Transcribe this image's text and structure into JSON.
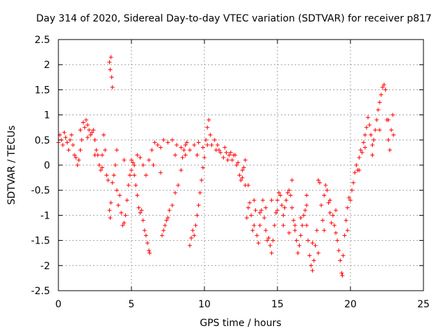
{
  "chart_data": {
    "type": "scatter",
    "title": "Day 314 of 2020, Sidereal Day-to-day VTEC variation (SDTVAR) for receiver p817",
    "xlabel": "GPS time / hours",
    "ylabel": "SDTVAR / TECUs",
    "xlim": [
      0,
      25
    ],
    "ylim": [
      -2.5,
      2.5
    ],
    "x_ticks": [
      0,
      5,
      10,
      15,
      20,
      25
    ],
    "x_tick_labels": [
      "0",
      "5",
      "10",
      "15",
      "20",
      "25"
    ],
    "y_ticks": [
      -2.5,
      -2,
      -1.5,
      -1,
      -0.5,
      0,
      0.5,
      1,
      1.5,
      2,
      2.5
    ],
    "y_tick_labels": [
      "-2.5",
      "-2",
      "-1.5",
      "-1",
      "-0.5",
      "0",
      "0.5",
      "1",
      "1.5",
      "2",
      "2.5"
    ],
    "grid": true,
    "marker": "+",
    "color": "#ff0000",
    "series": [
      {
        "name": "SDTVAR p817",
        "points": [
          [
            0.0,
            0.45
          ],
          [
            0.1,
            0.6
          ],
          [
            0.2,
            0.5
          ],
          [
            0.3,
            0.4
          ],
          [
            0.4,
            0.65
          ],
          [
            0.5,
            0.55
          ],
          [
            0.6,
            0.45
          ],
          [
            0.7,
            0.3
          ],
          [
            0.8,
            0.5
          ],
          [
            0.9,
            0.6
          ],
          [
            1.0,
            0.4
          ],
          [
            1.1,
            0.2
          ],
          [
            1.2,
            0.15
          ],
          [
            1.3,
            0.0
          ],
          [
            1.4,
            0.1
          ],
          [
            1.5,
            0.3
          ],
          [
            1.6,
            0.5
          ],
          [
            1.7,
            0.85
          ],
          [
            1.8,
            0.75
          ],
          [
            1.9,
            0.9
          ],
          [
            2.0,
            0.8
          ],
          [
            2.1,
            0.7
          ],
          [
            2.2,
            0.6
          ],
          [
            2.3,
            0.65
          ],
          [
            2.4,
            0.7
          ],
          [
            2.5,
            0.5
          ],
          [
            2.6,
            0.3
          ],
          [
            2.7,
            0.2
          ],
          [
            2.8,
            0.0
          ],
          [
            2.9,
            -0.1
          ],
          [
            3.0,
            0.2
          ],
          [
            3.1,
            0.6
          ],
          [
            3.2,
            0.3
          ],
          [
            3.3,
            -0.2
          ],
          [
            3.4,
            -0.3
          ],
          [
            3.5,
            2.05
          ],
          [
            3.55,
            1.9
          ],
          [
            3.6,
            2.15
          ],
          [
            3.65,
            1.75
          ],
          [
            3.7,
            1.55
          ],
          [
            3.5,
            -0.9
          ],
          [
            3.55,
            -1.05
          ],
          [
            3.6,
            -0.75
          ],
          [
            3.7,
            -0.35
          ],
          [
            3.8,
            -0.2
          ],
          [
            3.9,
            0.0
          ],
          [
            4.0,
            -0.5
          ],
          [
            4.1,
            -0.8
          ],
          [
            4.2,
            -0.6
          ],
          [
            4.3,
            -0.95
          ],
          [
            4.4,
            -1.2
          ],
          [
            4.5,
            -1.15
          ],
          [
            4.6,
            -1.0
          ],
          [
            4.7,
            -0.7
          ],
          [
            4.8,
            -0.4
          ],
          [
            4.9,
            -0.2
          ],
          [
            5.0,
            -0.1
          ],
          [
            5.1,
            0.05
          ],
          [
            5.2,
            -0.2
          ],
          [
            5.3,
            -0.4
          ],
          [
            5.4,
            -0.6
          ],
          [
            5.5,
            -0.85
          ],
          [
            5.6,
            -0.95
          ],
          [
            5.7,
            -0.9
          ],
          [
            5.8,
            -1.1
          ],
          [
            5.9,
            -1.3
          ],
          [
            6.0,
            -1.4
          ],
          [
            6.1,
            -1.55
          ],
          [
            6.2,
            -1.7
          ],
          [
            6.25,
            -1.75
          ],
          [
            5.0,
            0.1
          ],
          [
            5.2,
            0.0
          ],
          [
            5.4,
            0.2
          ],
          [
            5.6,
            0.15
          ],
          [
            5.8,
            0.0
          ],
          [
            6.0,
            -0.2
          ],
          [
            6.2,
            0.1
          ],
          [
            6.4,
            0.3
          ],
          [
            6.6,
            0.45
          ],
          [
            6.8,
            0.4
          ],
          [
            7.0,
            0.35
          ],
          [
            7.1,
            -1.4
          ],
          [
            7.2,
            -1.3
          ],
          [
            7.3,
            -1.2
          ],
          [
            7.4,
            -1.1
          ],
          [
            7.5,
            -1.05
          ],
          [
            7.6,
            -0.9
          ],
          [
            7.8,
            -0.8
          ],
          [
            8.0,
            -0.55
          ],
          [
            8.2,
            -0.4
          ],
          [
            8.4,
            -0.1
          ],
          [
            8.5,
            0.15
          ],
          [
            8.6,
            0.3
          ],
          [
            8.7,
            0.4
          ],
          [
            8.8,
            0.45
          ],
          [
            9.0,
            -1.6
          ],
          [
            9.1,
            -1.45
          ],
          [
            9.2,
            -1.3
          ],
          [
            9.3,
            -1.4
          ],
          [
            9.4,
            -1.2
          ],
          [
            9.5,
            -1.0
          ],
          [
            9.6,
            -0.8
          ],
          [
            9.7,
            -0.55
          ],
          [
            9.8,
            -0.3
          ],
          [
            9.9,
            -0.05
          ],
          [
            10.0,
            0.15
          ],
          [
            10.1,
            0.5
          ],
          [
            10.2,
            0.75
          ],
          [
            10.3,
            0.9
          ],
          [
            10.4,
            0.6
          ],
          [
            7.2,
            0.5
          ],
          [
            7.5,
            0.45
          ],
          [
            7.8,
            0.5
          ],
          [
            8.1,
            0.4
          ],
          [
            8.4,
            0.35
          ],
          [
            8.7,
            0.2
          ],
          [
            9.0,
            0.3
          ],
          [
            9.3,
            0.4
          ],
          [
            9.6,
            0.45
          ],
          [
            9.9,
            0.35
          ],
          [
            10.5,
            0.4
          ],
          [
            10.7,
            0.5
          ],
          [
            10.9,
            0.4
          ],
          [
            11.1,
            0.25
          ],
          [
            11.3,
            0.15
          ],
          [
            11.5,
            0.25
          ],
          [
            11.7,
            0.2
          ],
          [
            11.9,
            0.1
          ],
          [
            12.1,
            0.2
          ],
          [
            12.3,
            0.05
          ],
          [
            12.4,
            -0.2
          ],
          [
            12.5,
            -0.3
          ],
          [
            12.6,
            -0.1
          ],
          [
            12.7,
            -0.05
          ],
          [
            12.8,
            -0.4
          ],
          [
            12.9,
            -1.05
          ],
          [
            13.0,
            -0.85
          ],
          [
            13.1,
            -0.75
          ],
          [
            13.2,
            -1.0
          ],
          [
            13.3,
            -1.3
          ],
          [
            13.4,
            -1.2
          ],
          [
            13.5,
            -0.9
          ],
          [
            13.6,
            -1.4
          ],
          [
            13.7,
            -1.55
          ],
          [
            13.8,
            -1.2
          ],
          [
            13.9,
            -0.9
          ],
          [
            14.0,
            -0.7
          ],
          [
            14.1,
            -1.05
          ],
          [
            14.2,
            -1.3
          ],
          [
            14.3,
            -1.5
          ],
          [
            14.4,
            -1.45
          ],
          [
            14.5,
            -1.6
          ],
          [
            14.6,
            -1.75
          ],
          [
            14.7,
            -1.5
          ],
          [
            14.8,
            -1.2
          ],
          [
            14.9,
            -0.95
          ],
          [
            15.0,
            -0.7
          ],
          [
            15.1,
            -0.55
          ],
          [
            15.2,
            -0.6
          ],
          [
            15.3,
            -0.8
          ],
          [
            15.4,
            -1.0
          ],
          [
            15.5,
            -0.85
          ],
          [
            15.6,
            -0.7
          ],
          [
            15.7,
            -0.55
          ],
          [
            15.8,
            -0.5
          ],
          [
            15.9,
            -0.6
          ],
          [
            16.0,
            -0.85
          ],
          [
            16.1,
            -1.1
          ],
          [
            16.2,
            -1.3
          ],
          [
            16.3,
            -1.5
          ],
          [
            16.4,
            -1.75
          ],
          [
            16.5,
            -1.6
          ],
          [
            16.6,
            -1.4
          ],
          [
            16.7,
            -1.2
          ],
          [
            16.8,
            -1.0
          ],
          [
            16.9,
            -0.9
          ],
          [
            17.0,
            -1.2
          ],
          [
            17.1,
            -1.5
          ],
          [
            17.2,
            -1.8
          ],
          [
            17.3,
            -2.0
          ],
          [
            17.4,
            -2.1
          ],
          [
            17.5,
            -1.9
          ],
          [
            17.6,
            -1.6
          ],
          [
            17.7,
            -1.3
          ],
          [
            17.8,
            -0.3
          ],
          [
            17.9,
            -0.35
          ],
          [
            18.0,
            -0.8
          ],
          [
            18.1,
            -1.1
          ],
          [
            18.2,
            -0.6
          ],
          [
            18.3,
            -0.4
          ],
          [
            18.4,
            -0.5
          ],
          [
            18.5,
            -0.75
          ],
          [
            18.6,
            -0.95
          ],
          [
            18.7,
            -1.15
          ],
          [
            18.8,
            -1.0
          ],
          [
            18.9,
            -1.2
          ],
          [
            19.0,
            -1.35
          ],
          [
            19.1,
            -1.5
          ],
          [
            19.2,
            -1.7
          ],
          [
            19.3,
            -1.9
          ],
          [
            19.4,
            -2.15
          ],
          [
            19.45,
            -2.2
          ],
          [
            19.5,
            -1.8
          ],
          [
            19.6,
            -1.4
          ],
          [
            19.7,
            -1.1
          ],
          [
            19.8,
            -0.85
          ],
          [
            19.9,
            -0.65
          ],
          [
            20.0,
            -0.7
          ],
          [
            20.1,
            -0.5
          ],
          [
            20.2,
            -0.35
          ],
          [
            20.3,
            -0.15
          ],
          [
            20.4,
            0.0
          ],
          [
            20.5,
            -0.1
          ],
          [
            20.6,
            0.15
          ],
          [
            20.7,
            0.3
          ],
          [
            20.8,
            0.25
          ],
          [
            20.9,
            0.45
          ],
          [
            21.0,
            0.6
          ],
          [
            21.1,
            0.75
          ],
          [
            21.2,
            0.95
          ],
          [
            21.3,
            0.8
          ],
          [
            21.4,
            0.6
          ],
          [
            21.5,
            0.4
          ],
          [
            21.6,
            0.5
          ],
          [
            21.7,
            0.7
          ],
          [
            21.8,
            0.9
          ],
          [
            21.9,
            1.1
          ],
          [
            22.0,
            1.25
          ],
          [
            22.1,
            1.4
          ],
          [
            22.2,
            1.55
          ],
          [
            22.3,
            1.6
          ],
          [
            22.4,
            1.5
          ],
          [
            22.5,
            0.9
          ],
          [
            22.6,
            0.5
          ],
          [
            22.7,
            0.3
          ],
          [
            22.8,
            0.7
          ],
          [
            22.9,
            1.0
          ],
          [
            22.95,
            0.6
          ],
          [
            11.0,
            0.3
          ],
          [
            11.4,
            0.35
          ],
          [
            11.8,
            0.25
          ],
          [
            12.2,
            0.0
          ],
          [
            12.6,
            -0.25
          ],
          [
            13.0,
            -0.4
          ],
          [
            13.4,
            -0.7
          ],
          [
            13.8,
            -0.95
          ],
          [
            14.2,
            -0.85
          ],
          [
            14.6,
            -0.7
          ],
          [
            15.0,
            -0.9
          ],
          [
            15.4,
            -1.2
          ],
          [
            15.8,
            -1.35
          ],
          [
            16.2,
            -1.2
          ],
          [
            16.6,
            -1.05
          ],
          [
            17.0,
            -0.8
          ],
          [
            17.4,
            -1.55
          ],
          [
            17.8,
            -1.75
          ],
          [
            18.2,
            -1.3
          ],
          [
            18.6,
            -0.7
          ],
          [
            1.5,
            0.7
          ],
          [
            2.0,
            0.55
          ],
          [
            2.5,
            0.2
          ],
          [
            3.0,
            -0.05
          ],
          [
            4.0,
            0.3
          ],
          [
            4.5,
            0.1
          ],
          [
            6.5,
            0.0
          ],
          [
            7.0,
            -0.15
          ],
          [
            8.0,
            0.2
          ],
          [
            9.5,
            0.2
          ],
          [
            10.2,
            0.4
          ],
          [
            10.8,
            0.3
          ],
          [
            11.6,
            0.1
          ],
          [
            12.0,
            0.2
          ],
          [
            12.8,
            0.1
          ],
          [
            16.0,
            -0.3
          ],
          [
            17.0,
            -0.6
          ],
          [
            19.0,
            -0.9
          ],
          [
            19.8,
            -1.3
          ],
          [
            20.6,
            -0.1
          ],
          [
            21.0,
            0.35
          ],
          [
            21.5,
            0.2
          ],
          [
            22.0,
            0.7
          ],
          [
            22.6,
            0.9
          ]
        ]
      }
    ]
  }
}
